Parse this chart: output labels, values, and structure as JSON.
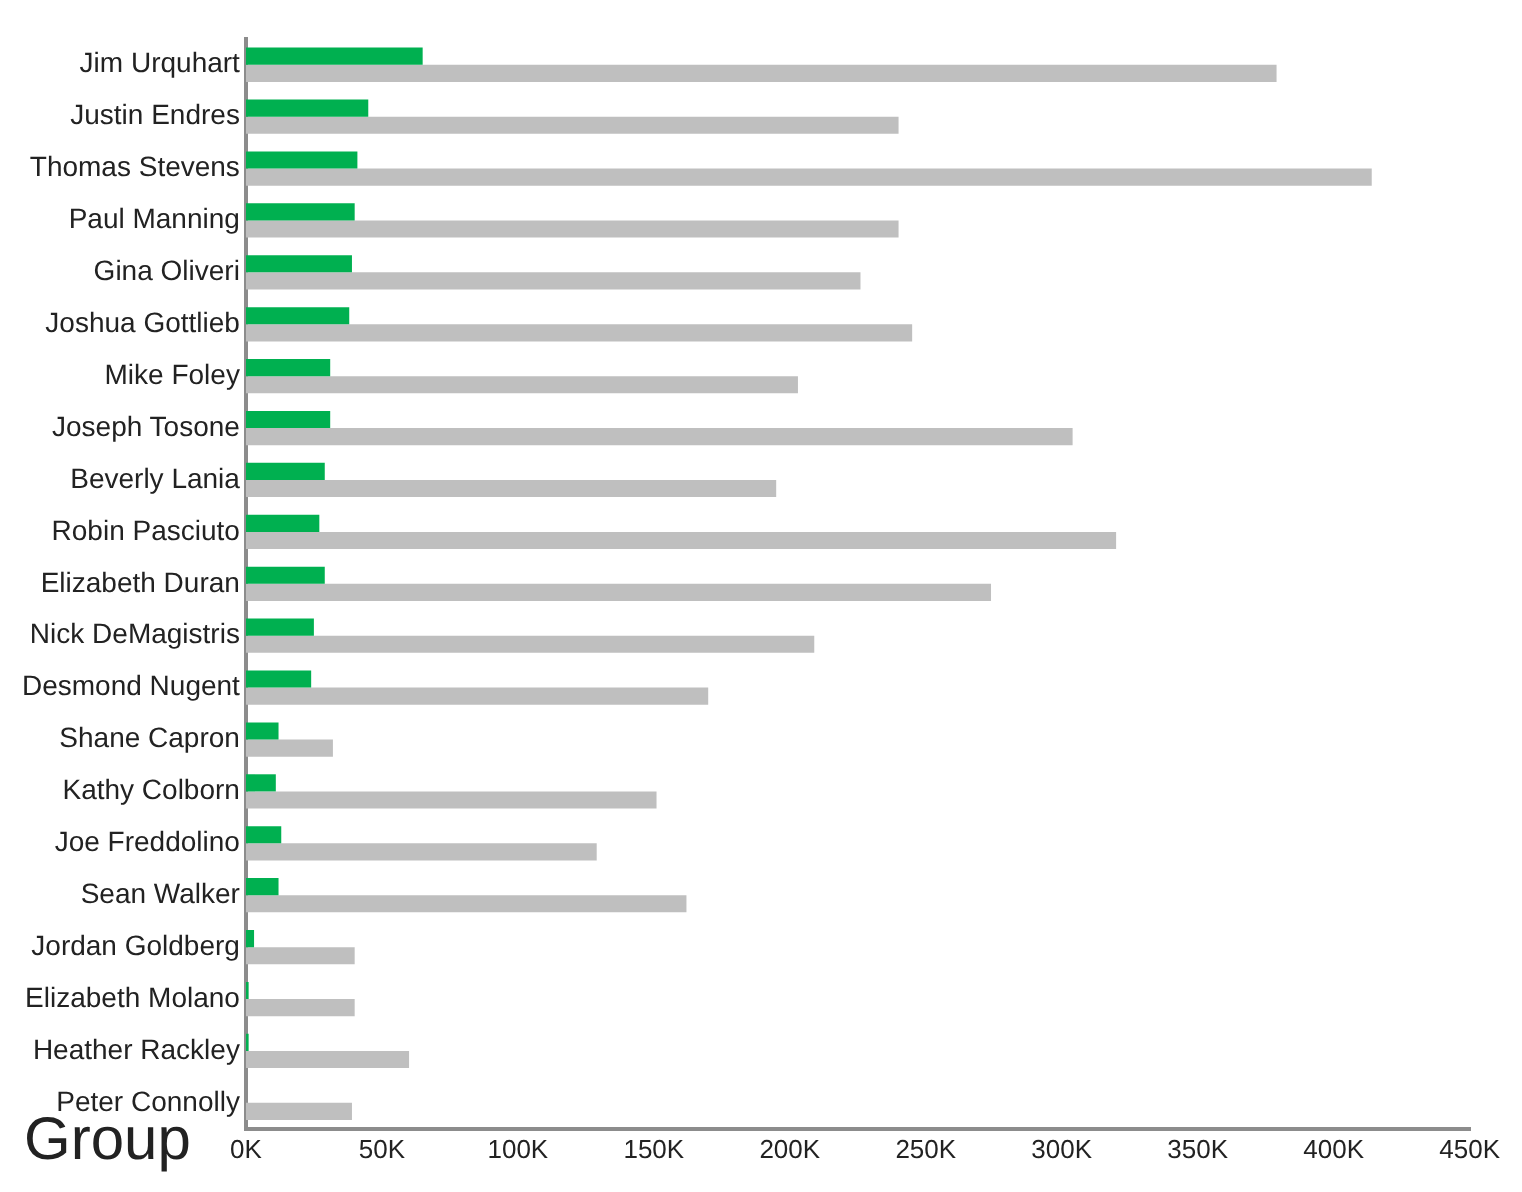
{
  "chart_data": {
    "type": "bar",
    "orientation": "horizontal",
    "categories": [
      "Jim Urquhart",
      "Justin Endres",
      "Thomas Stevens",
      "Paul Manning",
      "Gina Oliveri",
      "Joshua Gottlieb",
      "Mike Foley",
      "Joseph Tosone",
      "Beverly Lania",
      "Robin Pasciuto",
      "Elizabeth Duran",
      "Nick DeMagistris",
      "Desmond Nugent",
      "Shane Capron",
      "Kathy Colborn",
      "Joe Freddolino",
      "Sean Walker",
      "Jordan Goldberg",
      "Elizabeth Molano",
      "Heather Rackley",
      "Peter Connolly"
    ],
    "series": [
      {
        "color": "#00b050",
        "values": [
          65000,
          45000,
          41000,
          40000,
          39000,
          38000,
          31000,
          31000,
          29000,
          27000,
          29000,
          25000,
          24000,
          12000,
          11000,
          13000,
          12000,
          3000,
          1000,
          1000,
          0
        ]
      },
      {
        "color": "#bfbfbf",
        "values": [
          379000,
          240000,
          414000,
          240000,
          226000,
          245000,
          203000,
          304000,
          195000,
          320000,
          274000,
          209000,
          170000,
          32000,
          151000,
          129000,
          162000,
          40000,
          40000,
          60000,
          39000
        ]
      }
    ],
    "xlim": [
      0,
      450000
    ],
    "xticks": [
      {
        "value": 0,
        "label": "0K"
      },
      {
        "value": 50000,
        "label": "50K"
      },
      {
        "value": 100000,
        "label": "100K"
      },
      {
        "value": 150000,
        "label": "150K"
      },
      {
        "value": 200000,
        "label": "200K"
      },
      {
        "value": 250000,
        "label": "250K"
      },
      {
        "value": 300000,
        "label": "300K"
      },
      {
        "value": 350000,
        "label": "350K"
      },
      {
        "value": 400000,
        "label": "400K"
      },
      {
        "value": 450000,
        "label": "450K"
      }
    ],
    "grid": false,
    "legend": false,
    "annotations": [
      "Group"
    ]
  }
}
